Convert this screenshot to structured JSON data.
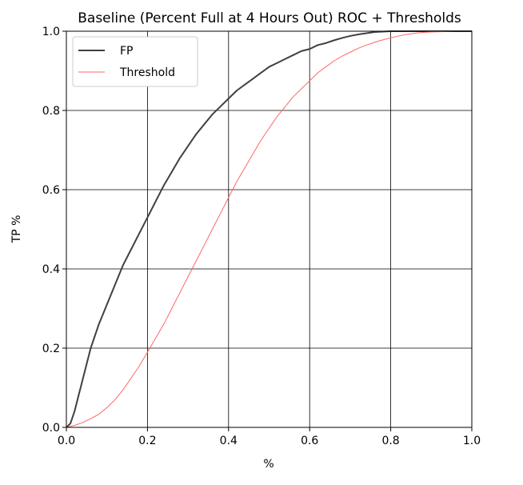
{
  "chart_data": {
    "type": "line",
    "title": "Baseline (Percent Full at 4 Hours Out) ROC + Thresholds",
    "xlabel": "%",
    "ylabel": "TP %",
    "xlim": [
      0.0,
      1.0
    ],
    "ylim": [
      0.0,
      1.0
    ],
    "xticks": [
      "0.0",
      "0.2",
      "0.4",
      "0.6",
      "0.8",
      "1.0"
    ],
    "yticks": [
      "0.0",
      "0.2",
      "0.4",
      "0.6",
      "0.8",
      "1.0"
    ],
    "grid": true,
    "legend_position": "top-left",
    "series": [
      {
        "name": "FP",
        "color": "#404040",
        "x": [
          0.0,
          0.01,
          0.02,
          0.03,
          0.04,
          0.06,
          0.08,
          0.1,
          0.12,
          0.14,
          0.16,
          0.18,
          0.2,
          0.22,
          0.24,
          0.26,
          0.28,
          0.3,
          0.32,
          0.34,
          0.36,
          0.38,
          0.4,
          0.42,
          0.44,
          0.46,
          0.48,
          0.5,
          0.52,
          0.54,
          0.56,
          0.58,
          0.6,
          0.62,
          0.64,
          0.66,
          0.68,
          0.7,
          0.72,
          0.74,
          0.76,
          0.78,
          0.8,
          0.85,
          0.9,
          0.95,
          1.0
        ],
        "y": [
          0.0,
          0.01,
          0.04,
          0.08,
          0.12,
          0.2,
          0.26,
          0.31,
          0.36,
          0.41,
          0.45,
          0.49,
          0.53,
          0.57,
          0.61,
          0.645,
          0.68,
          0.71,
          0.74,
          0.765,
          0.79,
          0.81,
          0.83,
          0.85,
          0.865,
          0.88,
          0.895,
          0.91,
          0.92,
          0.93,
          0.94,
          0.95,
          0.955,
          0.965,
          0.97,
          0.977,
          0.983,
          0.988,
          0.992,
          0.995,
          0.998,
          0.999,
          1.0,
          1.0,
          1.0,
          1.0,
          1.0
        ]
      },
      {
        "name": "Threshold",
        "color": "#ff6666",
        "x": [
          0.0,
          0.02,
          0.04,
          0.06,
          0.08,
          0.1,
          0.12,
          0.14,
          0.16,
          0.18,
          0.2,
          0.22,
          0.24,
          0.26,
          0.28,
          0.3,
          0.32,
          0.34,
          0.36,
          0.38,
          0.4,
          0.42,
          0.44,
          0.46,
          0.48,
          0.5,
          0.52,
          0.54,
          0.56,
          0.58,
          0.6,
          0.62,
          0.64,
          0.66,
          0.68,
          0.7,
          0.72,
          0.74,
          0.76,
          0.78,
          0.8,
          0.82,
          0.84,
          0.86,
          0.88,
          0.9,
          0.93,
          0.96,
          1.0
        ],
        "y": [
          0.0,
          0.005,
          0.012,
          0.022,
          0.033,
          0.05,
          0.07,
          0.095,
          0.125,
          0.155,
          0.19,
          0.225,
          0.26,
          0.3,
          0.34,
          0.38,
          0.42,
          0.46,
          0.5,
          0.54,
          0.58,
          0.62,
          0.655,
          0.69,
          0.725,
          0.755,
          0.785,
          0.81,
          0.835,
          0.855,
          0.875,
          0.895,
          0.91,
          0.925,
          0.937,
          0.947,
          0.957,
          0.965,
          0.972,
          0.978,
          0.983,
          0.988,
          0.992,
          0.995,
          0.997,
          0.998,
          0.999,
          1.0,
          1.0
        ]
      }
    ]
  }
}
